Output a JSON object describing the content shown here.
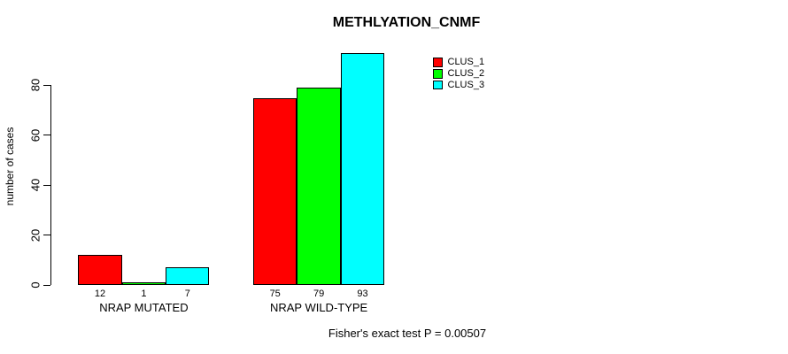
{
  "chart_data": {
    "type": "bar",
    "title": "METHLYATION_CNMF",
    "ylabel": "number of cases",
    "annotation": "Fisher's exact test P = 0.00507",
    "categories": [
      "NRAP MUTATED",
      "NRAP WILD-TYPE"
    ],
    "series": [
      {
        "name": "CLUS_1",
        "color": "#FF0000",
        "values": [
          12,
          75
        ]
      },
      {
        "name": "CLUS_2",
        "color": "#00FF00",
        "values": [
          1,
          79
        ]
      },
      {
        "name": "CLUS_3",
        "color": "#00FFFF",
        "values": [
          7,
          93
        ]
      }
    ],
    "yticks": [
      0,
      20,
      40,
      60,
      80
    ],
    "ylim": [
      0,
      93
    ],
    "grid": false,
    "bar_labels": true,
    "bar_border_color": "#000000",
    "background_color": "#FFFFFF",
    "legend_position": "top-right"
  }
}
